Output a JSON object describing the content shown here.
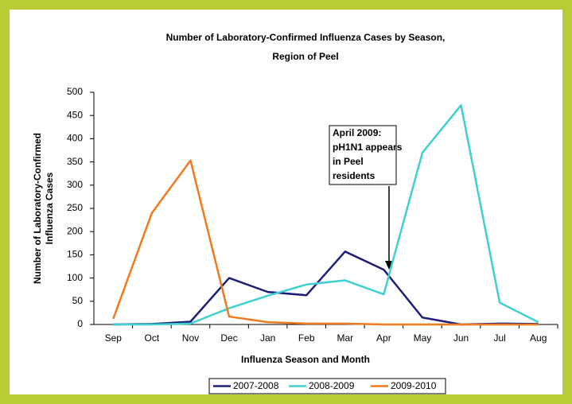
{
  "chart_data": {
    "type": "line",
    "title": [
      "Number of Laboratory-Confirmed Influenza Cases by Season,",
      "Region of Peel"
    ],
    "x_label": "Influenza Season and Month",
    "y_label": [
      "Number of Laboratory-Confirmed",
      "Influenza Cases"
    ],
    "annotation": [
      "April 2009:",
      "pH1N1 appears",
      "in Peel",
      "residents"
    ],
    "categories": [
      "Sep",
      "Oct",
      "Nov",
      "Dec",
      "Jan",
      "Feb",
      "Mar",
      "Apr",
      "May",
      "Jun",
      "Jul",
      "Aug"
    ],
    "series": [
      {
        "name": "2007-2008",
        "color": "#1f1f7a",
        "values": [
          0,
          1,
          6,
          100,
          70,
          63,
          157,
          118,
          15,
          0,
          2,
          1
        ]
      },
      {
        "name": "2008-2009",
        "color": "#40d0d0",
        "values": [
          0,
          0,
          2,
          35,
          62,
          86,
          95,
          65,
          370,
          472,
          47,
          5
        ]
      },
      {
        "name": "2009-2010",
        "color": "#f07a20",
        "values": [
          12,
          240,
          353,
          17,
          5,
          2,
          2,
          0,
          0,
          0,
          0,
          0
        ]
      }
    ],
    "ylim": [
      0,
      500
    ],
    "yticks": [
      0,
      50,
      100,
      150,
      200,
      250,
      300,
      350,
      400,
      450,
      500
    ],
    "legend": "bottom"
  }
}
